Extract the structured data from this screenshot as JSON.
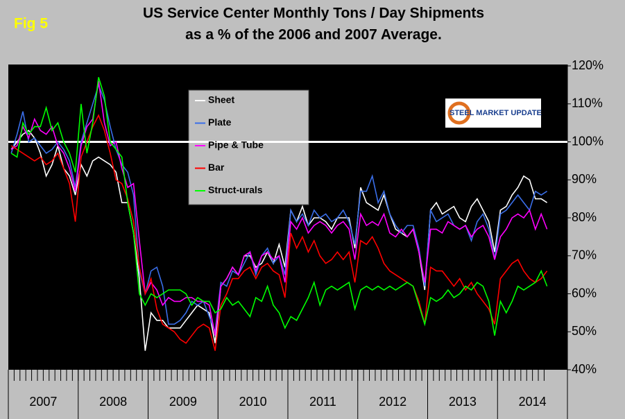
{
  "chart_data": {
    "type": "line",
    "fig_label": "Fig 5",
    "title": "US Service Center Monthly Tons / Day Shipments",
    "subtitle": "as a % of the 2006 and 2007 Average.",
    "logo_text": "STEEL MARKET UPDATE",
    "categories": [
      null,
      null,
      null,
      null,
      null,
      null,
      null,
      null,
      null,
      null,
      null,
      null,
      null,
      null,
      null,
      null,
      null,
      null,
      null,
      null,
      null,
      null,
      null,
      null,
      null,
      null,
      null,
      null,
      null,
      null,
      null,
      null,
      null,
      null,
      null,
      null,
      null,
      null,
      null,
      null,
      null,
      null,
      null,
      null,
      null,
      null,
      null,
      null,
      null,
      null,
      null,
      null,
      null,
      null,
      null,
      null,
      null,
      null,
      null,
      null,
      null,
      null,
      null,
      null,
      null,
      null,
      null,
      null,
      null,
      null,
      null,
      null,
      null,
      null,
      null,
      null,
      null,
      null,
      null,
      null,
      null,
      null,
      null,
      null,
      null,
      null,
      null,
      null,
      null,
      null,
      null,
      null,
      null
    ],
    "x_group_labels": [
      "2007",
      "2008",
      "2009",
      "2010",
      "2011",
      "2012",
      "2013",
      "2014"
    ],
    "ylim": [
      40,
      120
    ],
    "yticks": [
      {
        "value": 40,
        "label": "40%"
      },
      {
        "value": 50,
        "label": "50%"
      },
      {
        "value": 60,
        "label": "60%"
      },
      {
        "value": 70,
        "label": "70%"
      },
      {
        "value": 80,
        "label": "80%"
      },
      {
        "value": 90,
        "label": "90%"
      },
      {
        "value": 100,
        "label": "100%"
      },
      {
        "value": 110,
        "label": "110%"
      },
      {
        "value": 120,
        "label": "120%"
      }
    ],
    "reference_line": 100,
    "series": [
      {
        "name": "Sheet",
        "color": "#ffffff",
        "values": [
          98,
          100,
          102,
          103,
          101,
          97,
          91,
          94,
          99,
          93,
          91,
          86,
          94,
          91,
          95,
          96,
          95,
          94,
          92,
          84,
          84,
          76,
          64,
          45,
          55,
          53,
          53,
          51,
          51,
          51,
          53,
          55,
          57,
          56,
          55,
          47,
          62,
          64,
          67,
          65,
          70,
          70,
          67,
          68,
          71,
          68,
          73,
          67,
          82,
          79,
          83,
          78,
          80,
          80,
          79,
          77,
          80,
          80,
          80,
          72,
          88,
          84,
          83,
          82,
          86,
          81,
          77,
          76,
          75,
          77,
          71,
          61,
          82,
          84,
          81,
          82,
          83,
          80,
          79,
          83,
          85,
          82,
          79,
          71,
          82,
          83,
          86,
          88,
          91,
          90,
          85,
          85,
          84
        ]
      },
      {
        "name": "Plate",
        "color": "#3a6ee8",
        "values": [
          97,
          102,
          108,
          100,
          101,
          99,
          97,
          98,
          100,
          98,
          95,
          88,
          100,
          105,
          110,
          115,
          111,
          104,
          98,
          94,
          92,
          86,
          66,
          60,
          66,
          67,
          62,
          52,
          52,
          53,
          55,
          58,
          57,
          58,
          54,
          50,
          63,
          62,
          66,
          65,
          68,
          71,
          65,
          70,
          72,
          68,
          70,
          65,
          82,
          79,
          81,
          78,
          82,
          80,
          81,
          79,
          80,
          82,
          79,
          73,
          87,
          87,
          91,
          84,
          87,
          81,
          78,
          76,
          78,
          78,
          72,
          62,
          82,
          79,
          80,
          81,
          78,
          77,
          78,
          74,
          79,
          81,
          77,
          69,
          81,
          82,
          84,
          86,
          84,
          82,
          87,
          86,
          87
        ]
      },
      {
        "name": "Pipe & Tube",
        "color": "#ff00ff",
        "values": [
          98,
          99,
          104,
          101,
          106,
          103,
          102,
          104,
          99,
          97,
          93,
          87,
          99,
          104,
          106,
          116,
          105,
          99,
          100,
          93,
          88,
          89,
          74,
          60,
          63,
          61,
          57,
          59,
          58,
          58,
          59,
          59,
          58,
          58,
          57,
          49,
          62,
          64,
          67,
          65,
          70,
          71,
          66,
          70,
          71,
          69,
          70,
          63,
          79,
          77,
          80,
          76,
          78,
          79,
          78,
          76,
          78,
          79,
          77,
          69,
          81,
          78,
          79,
          78,
          81,
          76,
          75,
          77,
          75,
          77,
          71,
          63,
          77,
          77,
          76,
          79,
          78,
          77,
          78,
          75,
          77,
          78,
          75,
          69,
          75,
          77,
          80,
          81,
          80,
          82,
          77,
          81,
          77
        ]
      },
      {
        "name": "Bar",
        "color": "#ff0000",
        "values": [
          99,
          98,
          97,
          96,
          95,
          96,
          94,
          95,
          97,
          93,
          89,
          79,
          96,
          100,
          104,
          107,
          103,
          97,
          90,
          89,
          85,
          79,
          67,
          60,
          64,
          56,
          52,
          51,
          50,
          48,
          47,
          49,
          51,
          52,
          51,
          45,
          57,
          60,
          64,
          64,
          66,
          67,
          64,
          67,
          68,
          66,
          65,
          59,
          76,
          72,
          75,
          71,
          74,
          70,
          68,
          69,
          71,
          69,
          71,
          63,
          74,
          73,
          75,
          72,
          68,
          66,
          65,
          64,
          63,
          62,
          58,
          52,
          67,
          66,
          66,
          64,
          62,
          64,
          61,
          63,
          60,
          58,
          56,
          52,
          64,
          66,
          68,
          69,
          66,
          64,
          63,
          64,
          66
        ]
      },
      {
        "name": "Struct-urals",
        "color": "#00ff00",
        "values": [
          97,
          96,
          105,
          102,
          104,
          104,
          109,
          103,
          105,
          100,
          97,
          92,
          110,
          97,
          105,
          117,
          112,
          100,
          98,
          96,
          84,
          76,
          60,
          57,
          60,
          59,
          60,
          61,
          61,
          61,
          60,
          57,
          59,
          58,
          58,
          55,
          56,
          59,
          57,
          58,
          56,
          54,
          59,
          58,
          62,
          57,
          55,
          51,
          54,
          53,
          56,
          59,
          63,
          57,
          61,
          62,
          61,
          62,
          63,
          56,
          61,
          62,
          61,
          62,
          61,
          62,
          61,
          62,
          63,
          62,
          57,
          52,
          59,
          58,
          59,
          61,
          59,
          60,
          62,
          61,
          63,
          62,
          58,
          49,
          58,
          55,
          58,
          62,
          61,
          62,
          63,
          66,
          62
        ]
      }
    ]
  }
}
